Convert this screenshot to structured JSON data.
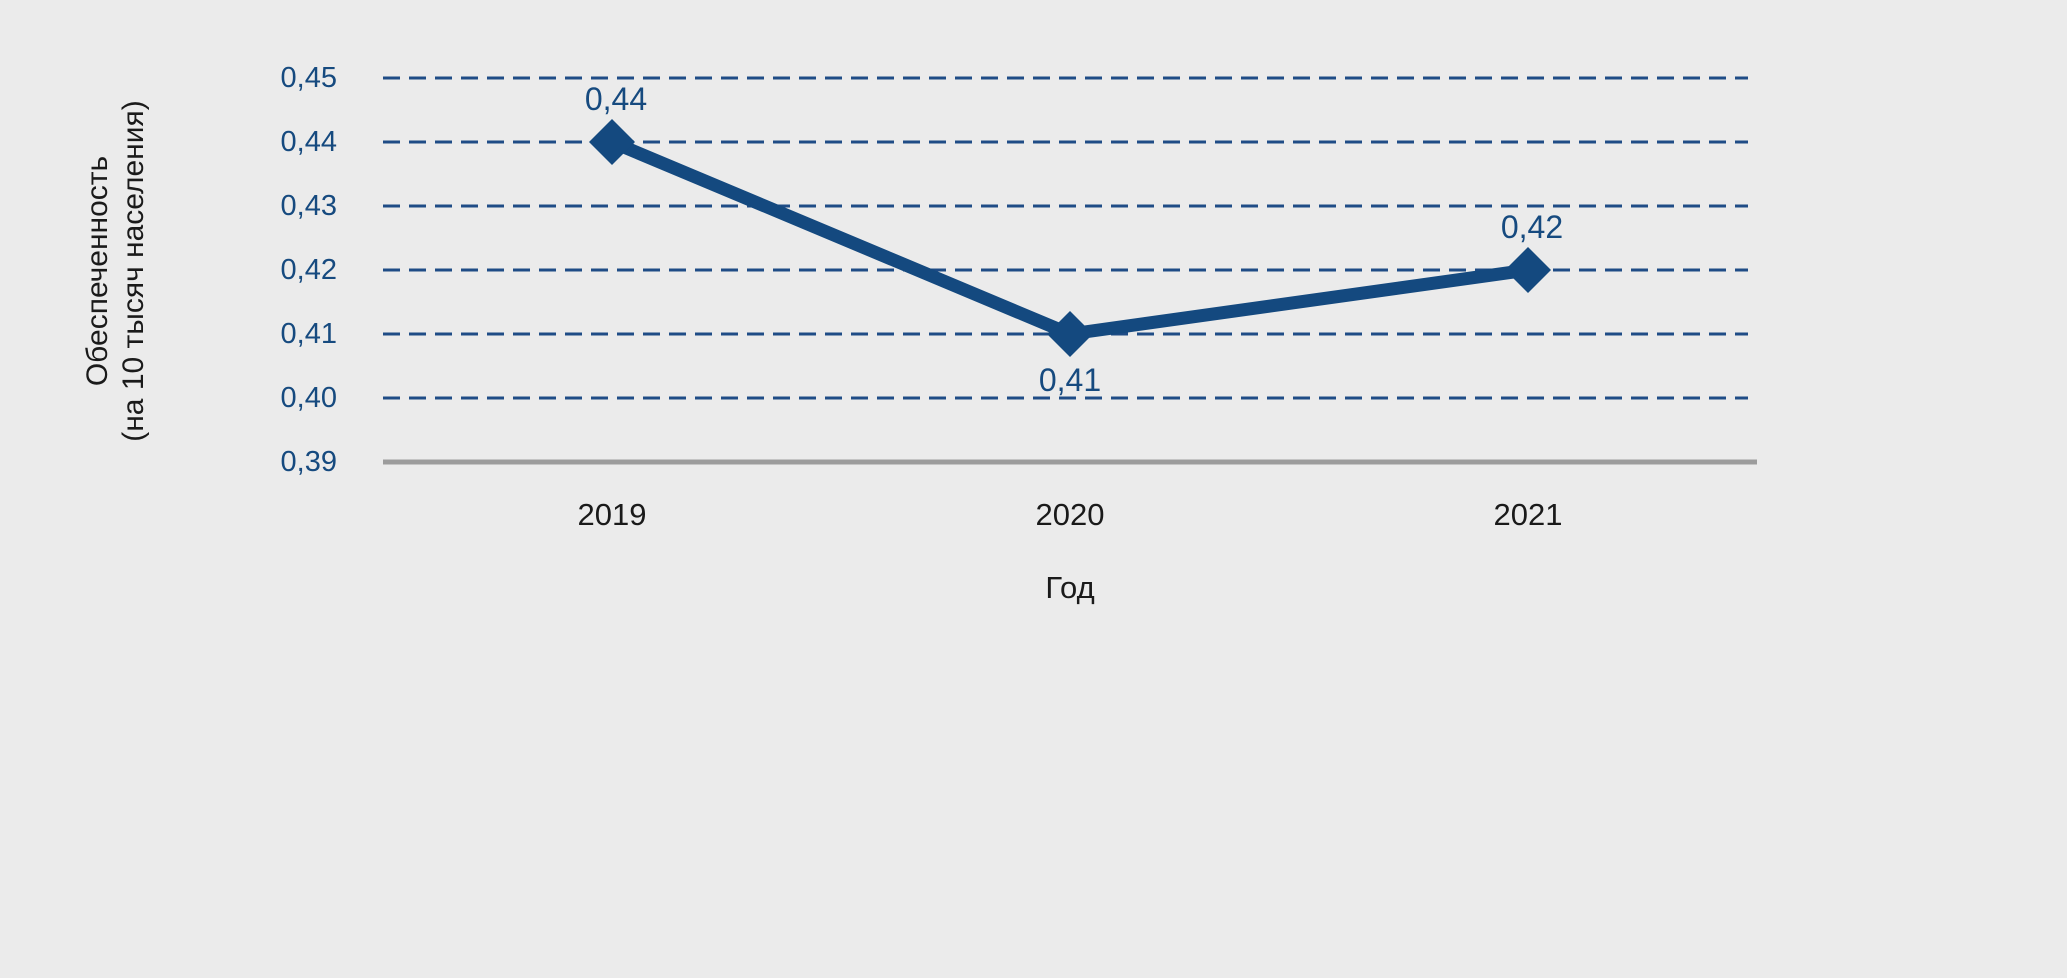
{
  "canvas": {
    "background_color": "#ebebeb"
  },
  "chart_data": {
    "type": "line",
    "title": "",
    "categories": [
      "2019",
      "2020",
      "2021"
    ],
    "series": [
      {
        "name": "Обеспеченность",
        "values": [
          0.44,
          0.41,
          0.42
        ]
      }
    ],
    "point_labels": [
      "0,44",
      "0,41",
      "0,42"
    ],
    "point_label_positions": [
      "above",
      "below",
      "above"
    ],
    "xlabel": "Год",
    "ylabel_line1": "Обеспеченность",
    "ylabel_line2": "(на 10 тысяч населения)",
    "yticks": [
      {
        "value": 0.45,
        "label": "0,45"
      },
      {
        "value": 0.44,
        "label": "0,44"
      },
      {
        "value": 0.43,
        "label": "0,43"
      },
      {
        "value": 0.42,
        "label": "0,42"
      },
      {
        "value": 0.41,
        "label": "0,41"
      },
      {
        "value": 0.4,
        "label": "0,40"
      },
      {
        "value": 0.39,
        "label": "0,39"
      }
    ],
    "ylim": [
      0.39,
      0.45
    ],
    "grid": "horizontal-dashed",
    "legend_position": "none",
    "marker_shape": "diamond",
    "colors": {
      "line": "#14497f",
      "marker": "#14497f",
      "gridline": "#1f4c86",
      "baseline_axis": "#9c9c9c",
      "y_tick_text": "#164a7f",
      "point_label_text": "#164a7f",
      "axis_label_text": "#1a1a1a",
      "background": "#ebebeb"
    }
  }
}
